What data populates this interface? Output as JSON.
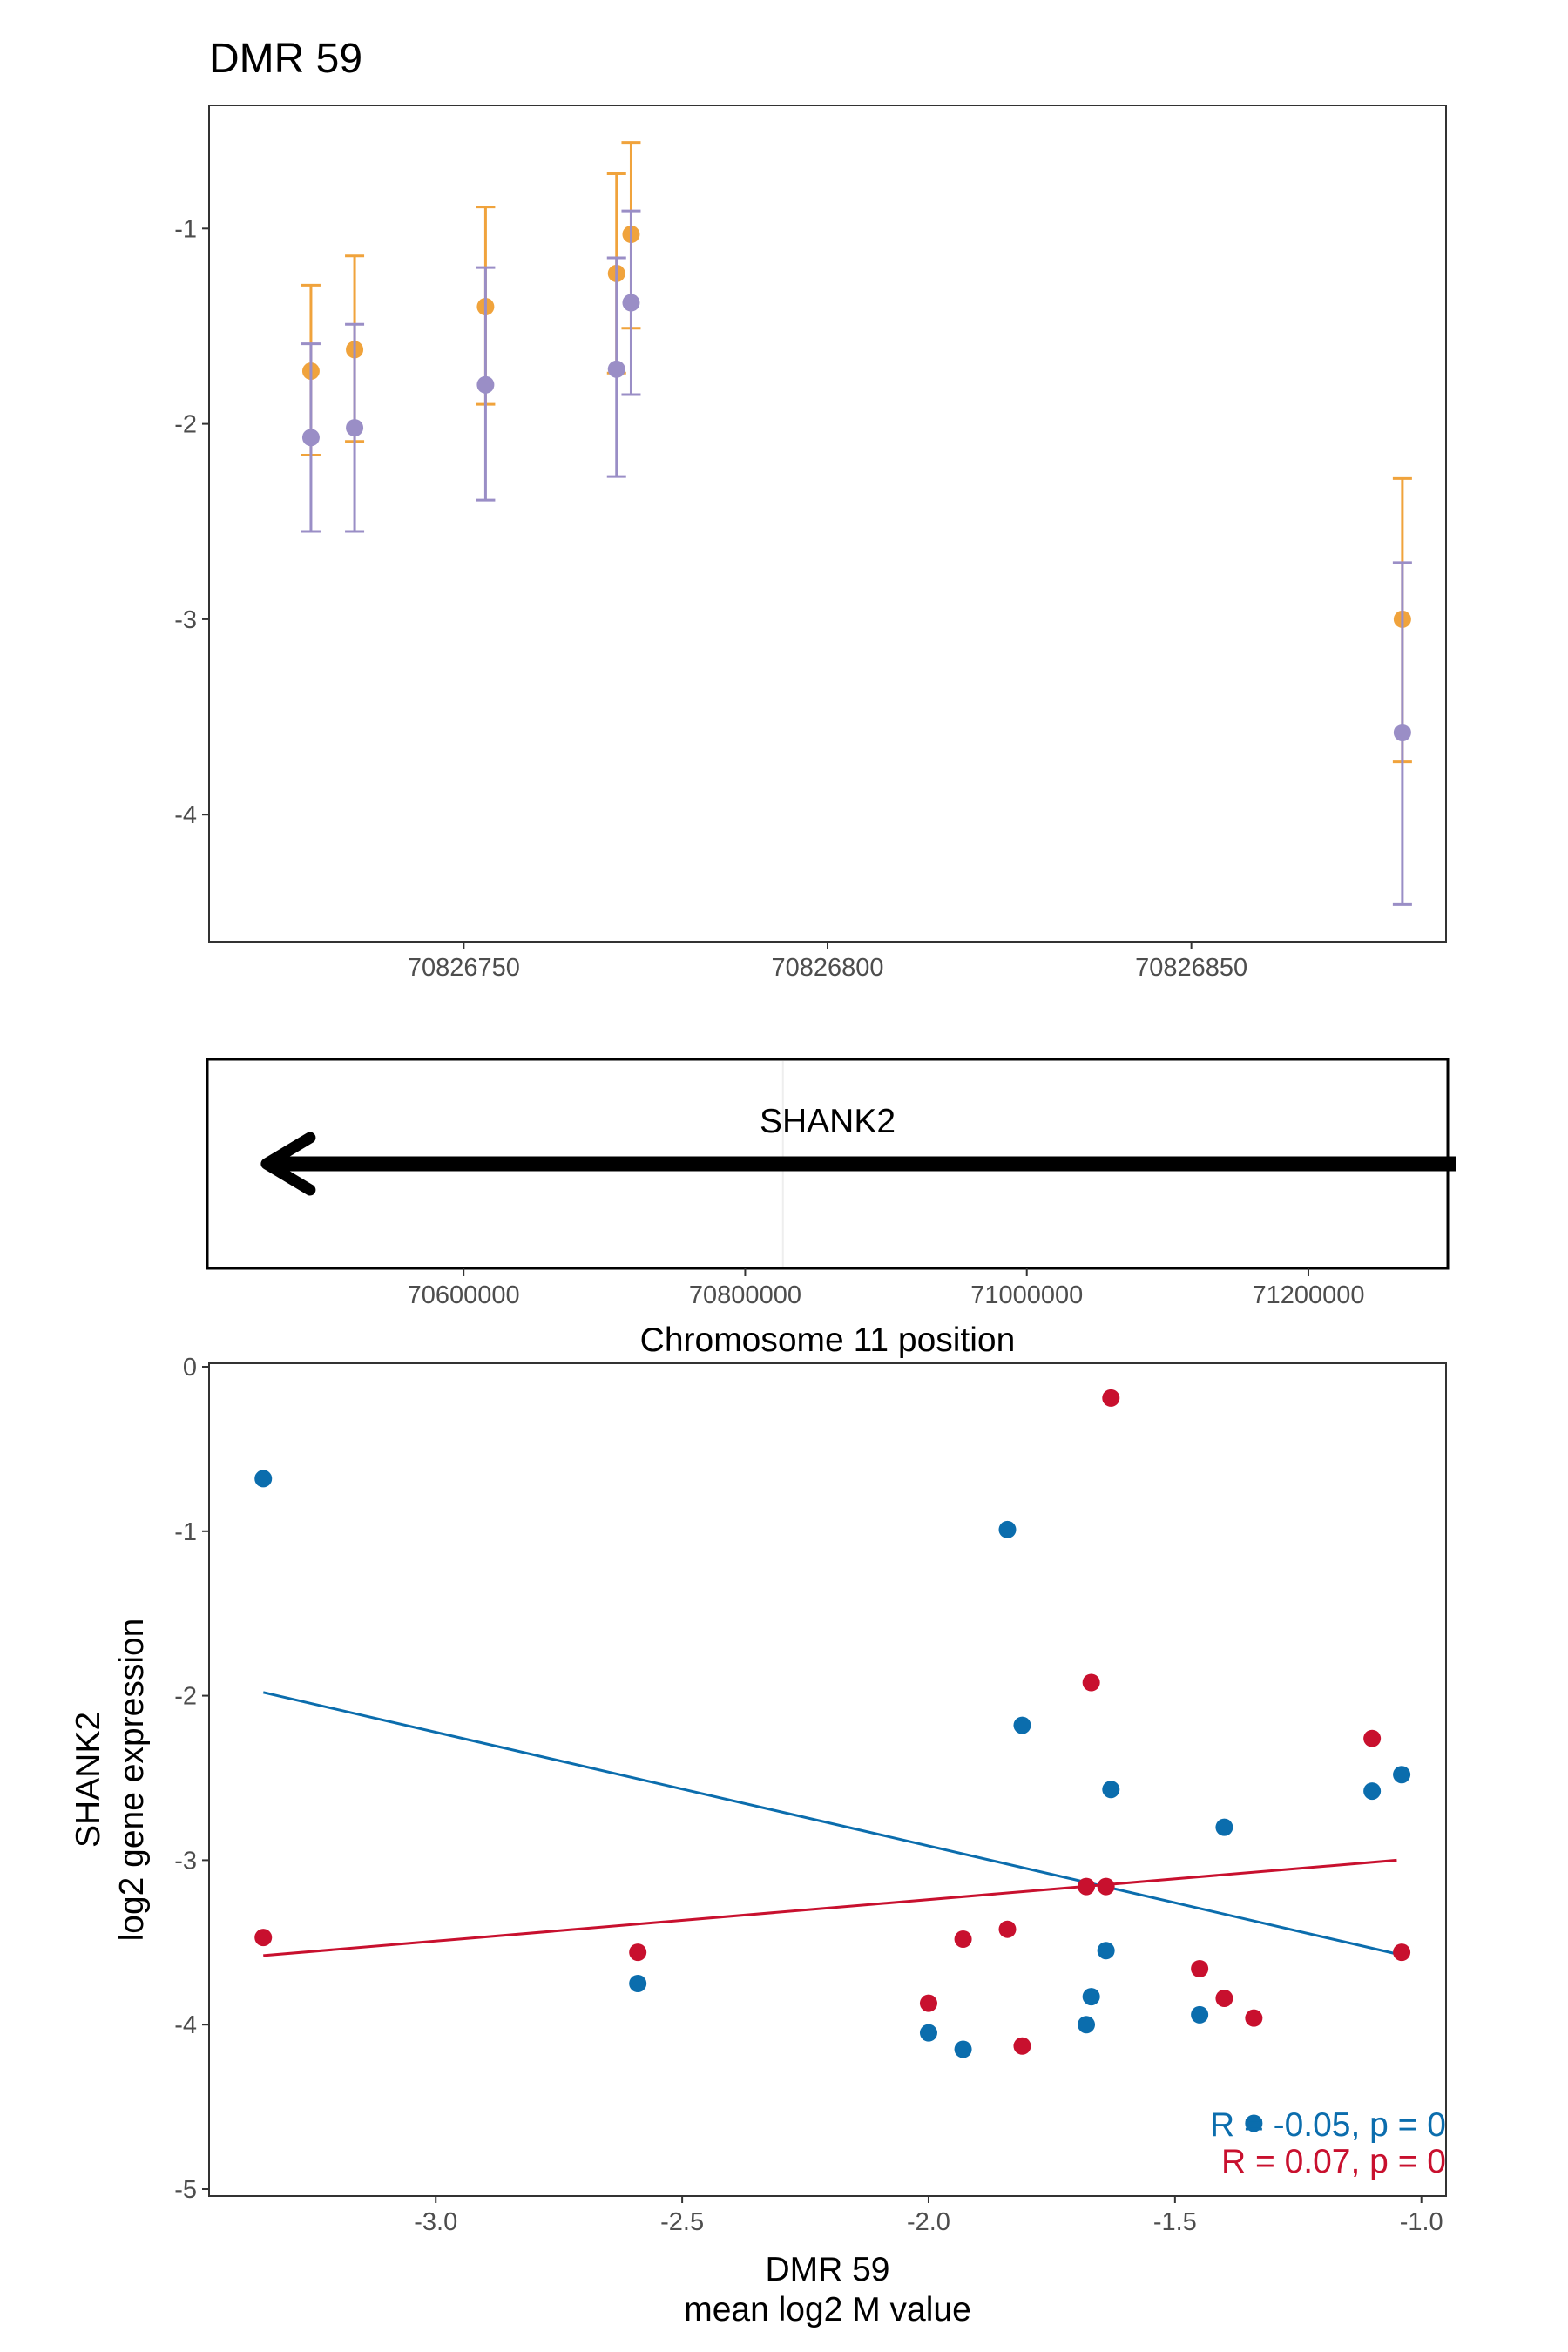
{
  "colors": {
    "orange": "#F0A33C",
    "purple": "#9A8EC6",
    "blue": "#0B6DAD",
    "red": "#C8102E",
    "frame": "#333333",
    "tick_text": "#4d4d4d"
  },
  "chart_data": [
    {
      "type": "scatter",
      "name": "dmr-positions",
      "title": "DMR 59",
      "xlabel": "",
      "ylabel": "",
      "xlim": [
        70826715,
        70826885
      ],
      "ylim": [
        -4.65,
        -0.37
      ],
      "x_ticks": [
        70826750,
        70826800,
        70826850
      ],
      "x_tick_labels": [
        "70826750",
        "70826800",
        "70826850"
      ],
      "y_ticks": [
        -1,
        -2,
        -3,
        -4
      ],
      "y_tick_labels": [
        "-1",
        "-2",
        "-3",
        "-4"
      ],
      "grid": false,
      "series": [
        {
          "color": "orange",
          "points": [
            {
              "x": 70826729,
              "y": -1.73,
              "lo": -2.16,
              "hi": -1.29
            },
            {
              "x": 70826735,
              "y": -1.62,
              "lo": -2.09,
              "hi": -1.14
            },
            {
              "x": 70826753,
              "y": -1.4,
              "lo": -1.9,
              "hi": -0.89
            },
            {
              "x": 70826771,
              "y": -1.23,
              "lo": -1.74,
              "hi": -0.72
            },
            {
              "x": 70826773,
              "y": -1.03,
              "lo": -1.51,
              "hi": -0.56
            },
            {
              "x": 70826879,
              "y": -3.0,
              "lo": -3.73,
              "hi": -2.28
            }
          ]
        },
        {
          "color": "purple",
          "points": [
            {
              "x": 70826729,
              "y": -2.07,
              "lo": -2.55,
              "hi": -1.59
            },
            {
              "x": 70826735,
              "y": -2.02,
              "lo": -2.55,
              "hi": -1.49
            },
            {
              "x": 70826753,
              "y": -1.8,
              "lo": -2.39,
              "hi": -1.2
            },
            {
              "x": 70826771,
              "y": -1.72,
              "lo": -2.27,
              "hi": -1.15
            },
            {
              "x": 70826773,
              "y": -1.38,
              "lo": -1.85,
              "hi": -0.91
            },
            {
              "x": 70826879,
              "y": -3.58,
              "lo": -4.46,
              "hi": -2.71
            }
          ]
        }
      ]
    },
    {
      "type": "other",
      "name": "gene-track",
      "xlabel": "Chromosome 11 position",
      "xlim": [
        70418000,
        71299000
      ],
      "x_ticks": [
        70600000,
        70800000,
        71000000,
        71200000
      ],
      "x_tick_labels": [
        "70600000",
        "70800000",
        "71000000",
        "71200000"
      ],
      "gene": {
        "label": "SHANK2",
        "start": 70460000,
        "end": 71305000,
        "strand": "-"
      },
      "marker_x": 70826800
    },
    {
      "type": "scatter",
      "name": "expression-vs-methylation",
      "xlabel": "DMR 59",
      "xlabel2": "mean log2 M value",
      "ylabel": "SHANK2",
      "ylabel2": "log2 gene expression",
      "xlim": [
        -3.46,
        -0.95
      ],
      "ylim": [
        -5.0,
        0.0
      ],
      "x_ticks": [
        -3.0,
        -2.5,
        -2.0,
        -1.5,
        -1.0
      ],
      "x_tick_labels": [
        "-3.0",
        "-2.5",
        "-2.0",
        "-1.5",
        "-1.0"
      ],
      "y_ticks": [
        0,
        -1,
        -2,
        -3,
        -4,
        -5
      ],
      "y_tick_labels": [
        "0",
        "-1",
        "-2",
        "-3",
        "-4",
        "-5"
      ],
      "grid": false,
      "series": [
        {
          "color": "blue",
          "annotation": "R = -0.05, p = 0",
          "fit": {
            "x": [
              -3.35,
              -1.05
            ],
            "y": [
              -1.98,
              -3.57
            ]
          },
          "points": [
            {
              "x": -3.35,
              "y": -0.68
            },
            {
              "x": -2.59,
              "y": -3.75
            },
            {
              "x": -2.0,
              "y": -4.05
            },
            {
              "x": -1.93,
              "y": -4.15
            },
            {
              "x": -1.84,
              "y": -0.99
            },
            {
              "x": -1.81,
              "y": -2.18
            },
            {
              "x": -1.68,
              "y": -4.0
            },
            {
              "x": -1.67,
              "y": -3.83
            },
            {
              "x": -1.64,
              "y": -3.55
            },
            {
              "x": -1.63,
              "y": -2.57
            },
            {
              "x": -1.45,
              "y": -3.94
            },
            {
              "x": -1.4,
              "y": -2.8
            },
            {
              "x": -1.34,
              "y": -4.6
            },
            {
              "x": -1.1,
              "y": -2.58
            },
            {
              "x": -1.04,
              "y": -2.48
            }
          ]
        },
        {
          "color": "red",
          "annotation": "R = 0.07, p = 0",
          "fit": {
            "x": [
              -3.35,
              -1.05
            ],
            "y": [
              -3.58,
              -3.0
            ]
          },
          "points": [
            {
              "x": -3.35,
              "y": -3.47
            },
            {
              "x": -2.59,
              "y": -3.56
            },
            {
              "x": -2.0,
              "y": -3.87
            },
            {
              "x": -1.93,
              "y": -3.48
            },
            {
              "x": -1.84,
              "y": -3.42
            },
            {
              "x": -1.81,
              "y": -4.13
            },
            {
              "x": -1.68,
              "y": -3.16
            },
            {
              "x": -1.67,
              "y": -1.92
            },
            {
              "x": -1.64,
              "y": -3.16
            },
            {
              "x": -1.63,
              "y": -0.19
            },
            {
              "x": -1.45,
              "y": -3.66
            },
            {
              "x": -1.4,
              "y": -3.84
            },
            {
              "x": -1.34,
              "y": -3.96
            },
            {
              "x": -1.1,
              "y": -2.26
            },
            {
              "x": -1.04,
              "y": -3.56
            }
          ]
        }
      ]
    }
  ]
}
